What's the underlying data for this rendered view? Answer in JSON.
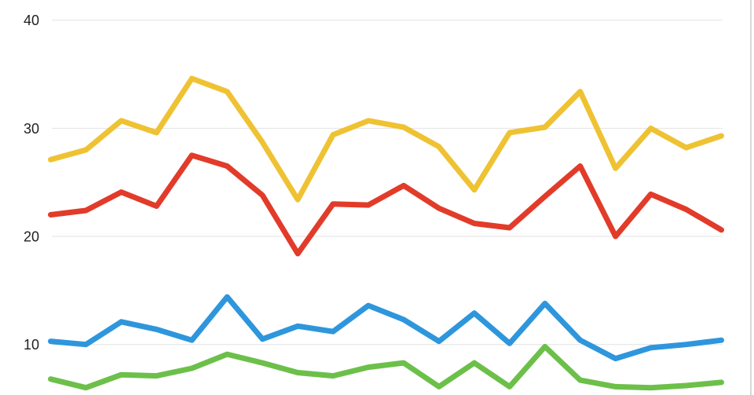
{
  "chart_data": {
    "type": "line",
    "title": "",
    "xlabel": "",
    "ylabel": "",
    "x": [
      1,
      2,
      3,
      4,
      5,
      6,
      7,
      8,
      9,
      10,
      11,
      12,
      13,
      14,
      15,
      16,
      17,
      18,
      19,
      20
    ],
    "x_axis_labels_visible": false,
    "y_axis": {
      "ticks": [
        40,
        30,
        20,
        10
      ],
      "tick_labels": [
        "40",
        "30",
        "20",
        "10"
      ],
      "visible_range": [
        5.3,
        41.9
      ]
    },
    "grid": "horizontal",
    "legend": "none",
    "series": [
      {
        "name": "yellow-series",
        "color": "#EFC233",
        "values": [
          27.1,
          28.0,
          30.7,
          29.6,
          34.6,
          33.4,
          28.7,
          23.4,
          29.4,
          30.7,
          30.1,
          28.3,
          24.3,
          29.6,
          30.1,
          33.4,
          26.3,
          30.0,
          28.2,
          29.3
        ]
      },
      {
        "name": "red-series",
        "color": "#E23B2A",
        "values": [
          22.0,
          22.4,
          24.1,
          22.8,
          27.5,
          26.5,
          23.8,
          18.4,
          23.0,
          22.9,
          24.7,
          22.6,
          21.2,
          20.8,
          23.7,
          26.5,
          20.0,
          23.9,
          22.5,
          20.6
        ]
      },
      {
        "name": "blue-series",
        "color": "#2E96DC",
        "values": [
          10.3,
          10.0,
          12.1,
          11.4,
          10.4,
          14.4,
          10.5,
          11.7,
          11.2,
          13.6,
          12.3,
          10.3,
          12.9,
          10.1,
          13.8,
          10.4,
          8.7,
          9.7,
          10.0,
          10.4
        ]
      },
      {
        "name": "green-series",
        "color": "#6CC04A",
        "values": [
          6.8,
          6.0,
          7.2,
          7.1,
          7.8,
          9.1,
          8.3,
          7.4,
          7.1,
          7.9,
          8.3,
          6.1,
          8.3,
          6.1,
          9.8,
          6.7,
          6.1,
          6.0,
          6.2,
          6.5
        ]
      }
    ],
    "colors": {
      "background": "#FFFFFF",
      "gridline": "#E2E2E2",
      "tick_label": "#1F1F1F"
    }
  }
}
